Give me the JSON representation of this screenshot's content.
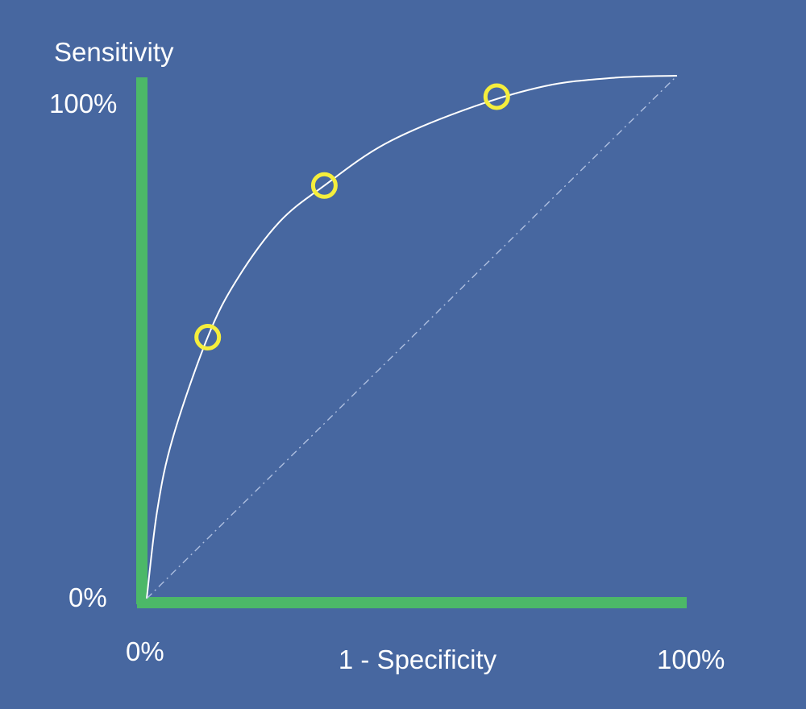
{
  "colors": {
    "background": "#4767a0",
    "axis": "#4cb868",
    "curve": "#ffffff",
    "diagonal": "#aebfe0",
    "markers": "#f5ee3c",
    "text": "#ffffff"
  },
  "chart_data": {
    "type": "line",
    "title": "",
    "ylabel": "Sensitivity",
    "xlabel": "1 - Specificity",
    "xlim": [
      0,
      100
    ],
    "ylim": [
      0,
      100
    ],
    "x_ticks": [
      {
        "value": 0,
        "label": "0%"
      },
      {
        "value": 100,
        "label": "100%"
      }
    ],
    "y_ticks": [
      {
        "value": 0,
        "label": "0%"
      },
      {
        "value": 100,
        "label": "100%"
      }
    ],
    "grid": false,
    "legend": "none",
    "series": [
      {
        "style": "solid",
        "points": [
          {
            "x": 0,
            "y": 0
          },
          {
            "x": 2,
            "y": 17
          },
          {
            "x": 5,
            "y": 31
          },
          {
            "x": 11.5,
            "y": 50
          },
          {
            "x": 17,
            "y": 61
          },
          {
            "x": 25,
            "y": 72
          },
          {
            "x": 33.5,
            "y": 79
          },
          {
            "x": 45,
            "y": 87
          },
          {
            "x": 60,
            "y": 93.5
          },
          {
            "x": 75,
            "y": 98
          },
          {
            "x": 88,
            "y": 99.6
          },
          {
            "x": 100,
            "y": 100
          }
        ]
      },
      {
        "style": "dash-dot",
        "points": [
          {
            "x": 0,
            "y": 0
          },
          {
            "x": 100,
            "y": 100
          }
        ]
      }
    ],
    "markers": [
      {
        "x": 11.5,
        "y": 50
      },
      {
        "x": 33.5,
        "y": 79
      },
      {
        "x": 66,
        "y": 96
      }
    ]
  }
}
